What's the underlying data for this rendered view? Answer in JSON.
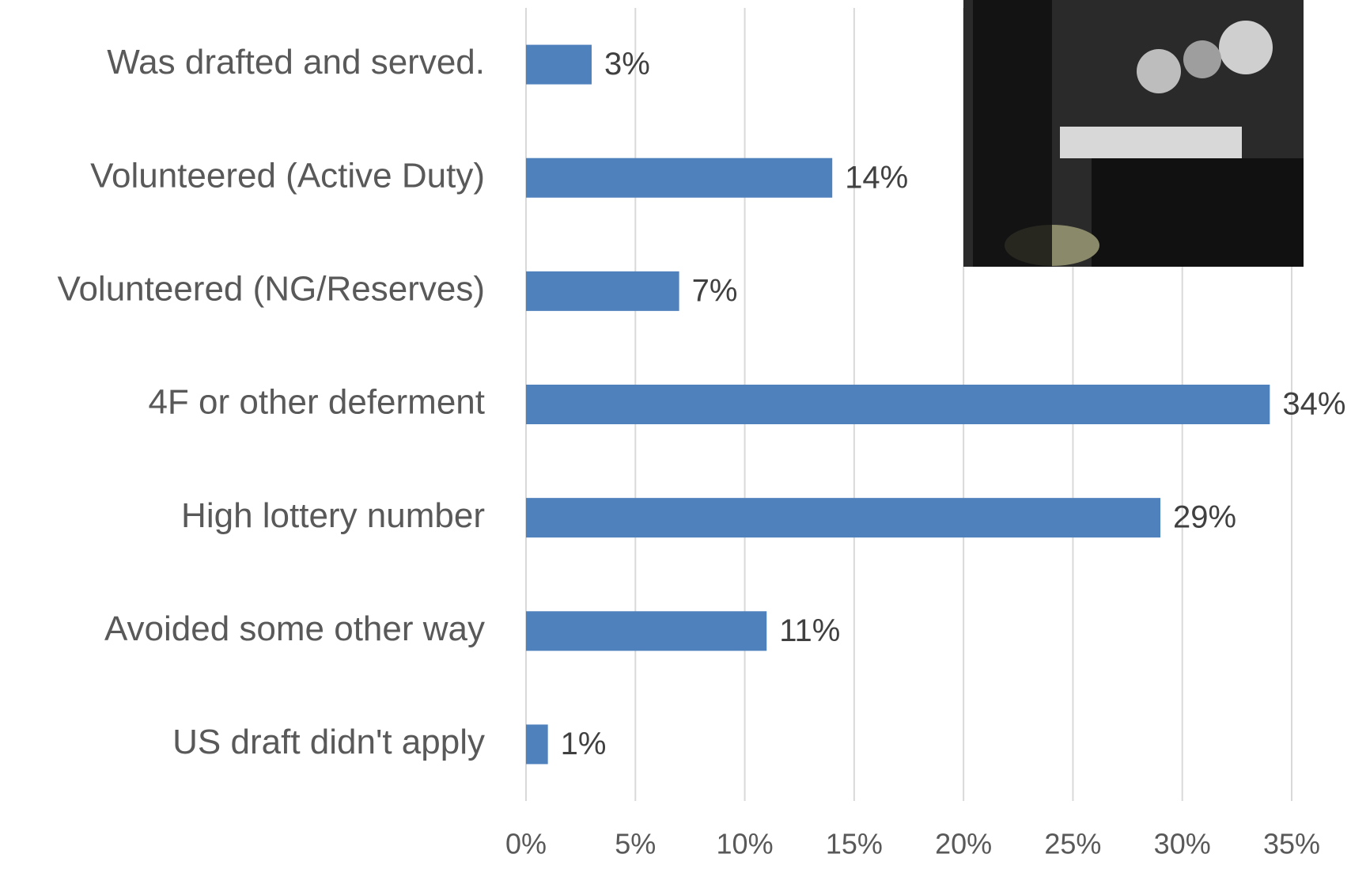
{
  "chart_data": {
    "type": "bar",
    "orientation": "horizontal",
    "categories": [
      "Was drafted and served.",
      "Volunteered (Active Duty)",
      "Volunteered (NG/Reserves)",
      "4F or other deferment",
      "High lottery number",
      "Avoided some other way",
      "US draft didn't apply"
    ],
    "values": [
      3,
      14,
      7,
      34,
      29,
      11,
      1
    ],
    "value_labels": [
      "3%",
      "14%",
      "7%",
      "34%",
      "29%",
      "11%",
      "1%"
    ],
    "color": "#4f81bd",
    "xlim": [
      0,
      35
    ],
    "xticks": [
      {
        "value": 0,
        "label": "0%"
      },
      {
        "value": 5,
        "label": "5%"
      },
      {
        "value": 10,
        "label": "10%"
      },
      {
        "value": 15,
        "label": "15%"
      },
      {
        "value": 20,
        "label": "20%"
      },
      {
        "value": 25,
        "label": "25%"
      },
      {
        "value": 30,
        "label": "30%"
      },
      {
        "value": 35,
        "label": "35%"
      }
    ],
    "grid": true
  }
}
